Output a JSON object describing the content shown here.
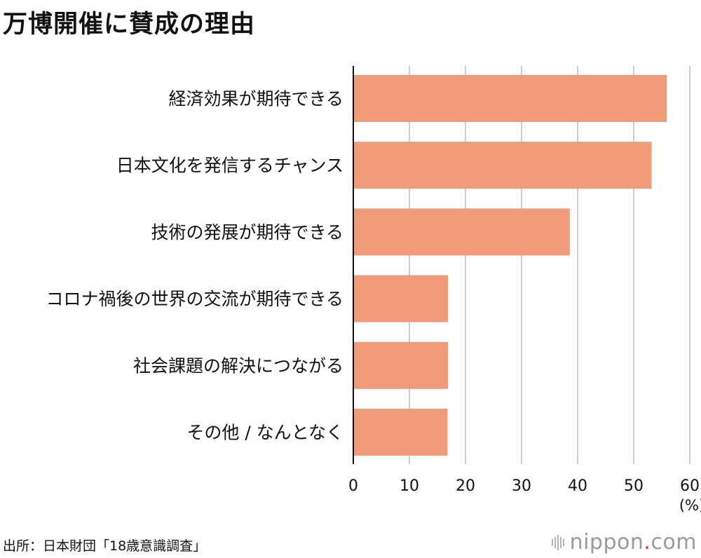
{
  "title": "万博開催に賛成の理由",
  "source": "出所：日本財団「18歳意識調査」",
  "logo": {
    "left": "nippon",
    "dot": ".",
    "right": "com"
  },
  "colors": {
    "bar": "#f19b7b",
    "grid": "#cccccc",
    "axis": "#111111"
  },
  "chart_data": {
    "type": "bar",
    "orientation": "horizontal",
    "categories": [
      "経済効果が期待できる",
      "日本文化を発信するチャンス",
      "技術の発展が期待できる",
      "コロナ禍後の世界の交流が期待できる",
      "社会課題の解決につながる",
      "その他 / なんとなく"
    ],
    "values": [
      55.9,
      53.2,
      38.6,
      16.9,
      16.9,
      16.8
    ],
    "xlim": [
      0,
      60
    ],
    "xticks": [
      "0",
      "10",
      "20",
      "30",
      "40",
      "50",
      "60"
    ],
    "unit": "(%)",
    "grid": true
  }
}
